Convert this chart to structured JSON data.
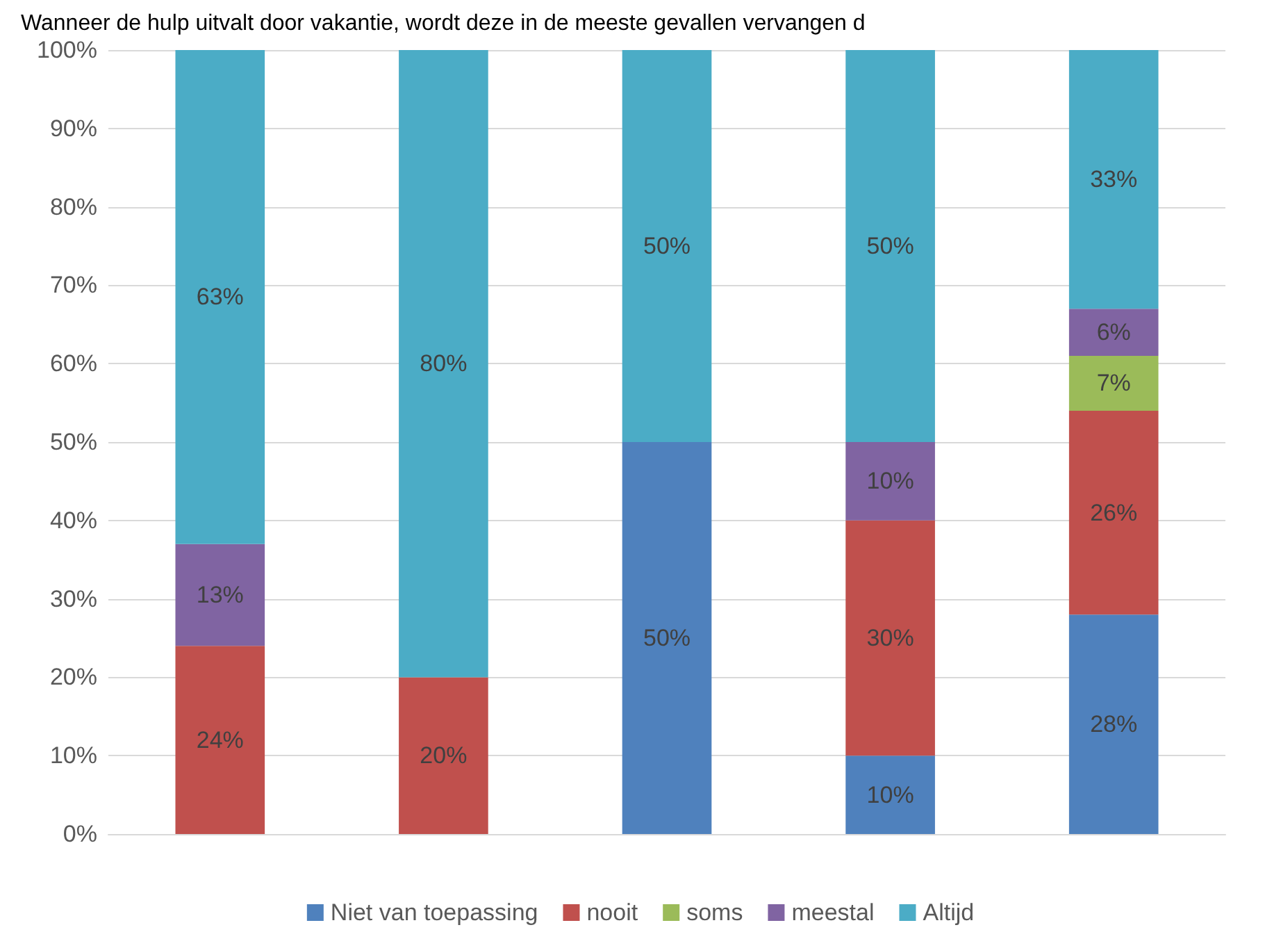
{
  "chart_data": {
    "type": "bar",
    "title": "Wanneer de hulp uitvalt door vakantie, wordt deze in de meeste gevallen vervangen d",
    "stacked": true,
    "categories": [
      null,
      null,
      null,
      null,
      null
    ],
    "series": [
      {
        "name": "Niet van toepassing",
        "color": "#4f81bd",
        "values": [
          null,
          null,
          50,
          10,
          28
        ],
        "value_labels": [
          null,
          null,
          "50%",
          "10%",
          "28%"
        ]
      },
      {
        "name": "nooit",
        "color": "#c0504d",
        "values": [
          24,
          20,
          null,
          30,
          26
        ],
        "value_labels": [
          "24%",
          "20%",
          null,
          "30%",
          "26%"
        ]
      },
      {
        "name": "soms",
        "color": "#9bbb59",
        "values": [
          null,
          null,
          null,
          null,
          7
        ],
        "value_labels": [
          null,
          null,
          null,
          null,
          "7%"
        ]
      },
      {
        "name": "meestal",
        "color": "#8064a2",
        "values": [
          13,
          null,
          null,
          10,
          6
        ],
        "value_labels": [
          "13%",
          null,
          null,
          "10%",
          "6%"
        ]
      },
      {
        "name": "Altijd",
        "color": "#4bacc6",
        "values": [
          63,
          80,
          50,
          50,
          33
        ],
        "value_labels": [
          "63%",
          "80%",
          "50%",
          "50%",
          "33%"
        ]
      }
    ],
    "ylim": [
      0,
      100
    ],
    "yticks": [
      {
        "value": 0,
        "label": "0%"
      },
      {
        "value": 10,
        "label": "10%"
      },
      {
        "value": 20,
        "label": "20%"
      },
      {
        "value": 30,
        "label": "30%"
      },
      {
        "value": 40,
        "label": "40%"
      },
      {
        "value": 50,
        "label": "50%"
      },
      {
        "value": 60,
        "label": "60%"
      },
      {
        "value": 70,
        "label": "70%"
      },
      {
        "value": 80,
        "label": "80%"
      },
      {
        "value": 90,
        "label": "90%"
      },
      {
        "value": 100,
        "label": "100%"
      }
    ],
    "grid": "y",
    "legend": "bottom"
  }
}
